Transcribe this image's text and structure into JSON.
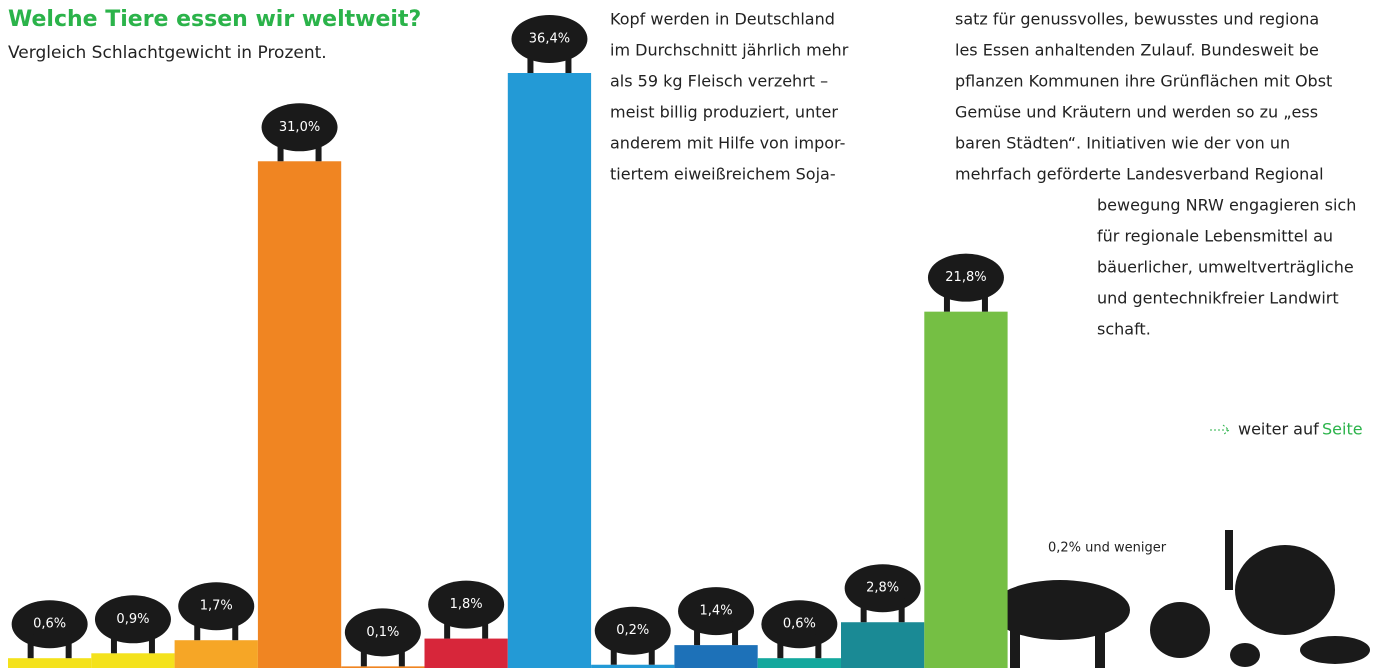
{
  "chart_data": {
    "type": "bar",
    "title": "Welche Tiere essen wir weltweit?",
    "subtitle": "Vergleich Schlachtgewicht in Prozent.",
    "values": [
      0.6,
      0.9,
      1.7,
      31.0,
      0.1,
      1.8,
      36.4,
      0.2,
      1.4,
      0.6,
      2.8,
      21.8
    ],
    "value_labels": [
      "0,6%",
      "0,9%",
      "1,7%",
      "31,0%",
      "0,1%",
      "1,8%",
      "36,4%",
      "0,2%",
      "1,4%",
      "0,6%",
      "2,8%",
      "21,8%"
    ],
    "colors": [
      "#f4e21c",
      "#f4e21c",
      "#f6a626",
      "#f08522",
      "#f08522",
      "#d7263a",
      "#239ad6",
      "#239ad6",
      "#1d71b8",
      "#14a89d",
      "#1a8a95",
      "#75bf44"
    ],
    "annotation": "0,2% und weniger"
  },
  "article": {
    "column1": [
      "Kopf werden in Deutschland",
      "im Durchschnitt jährlich mehr",
      "als 59 kg Fleisch verzehrt –",
      "meist billig produziert, unter",
      "anderem mit Hilfe von impor-",
      "tiertem eiweißreichem Soja-"
    ],
    "column2": [
      "satz für genussvolles, bewusstes und regiona",
      "les Essen anhaltenden Zulauf. Bundesweit be",
      "pflanzen Kommunen ihre Grünflächen mit Obst",
      "Gemüse und Kräutern und werden so zu „ess",
      "baren Städten“. Initiativen wie der von un",
      "mehrfach geförderte Landesverband Regional"
    ],
    "column3": [
      "bewegung NRW engagieren sich",
      "für regionale Lebensmittel au",
      "bäuerlicher, umweltverträgliche",
      "und gentechnikfreier Landwirt",
      "schaft."
    ],
    "link_prefix": "weiter auf",
    "link": "Seite"
  }
}
